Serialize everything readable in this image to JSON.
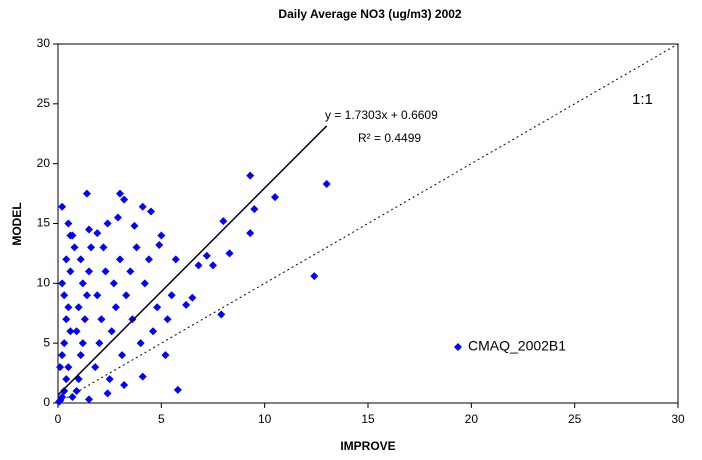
{
  "chart_data": {
    "type": "scatter",
    "title": "Daily Average NO3 (ug/m3) 2002",
    "x_label": "IMPROVE",
    "y_label": "MODEL",
    "xlim": [
      0,
      30
    ],
    "ylim": [
      0,
      30
    ],
    "xticks": [
      0,
      5,
      10,
      15,
      20,
      25,
      30
    ],
    "yticks": [
      0,
      5,
      10,
      15,
      20,
      25,
      30
    ],
    "grid": false,
    "series": [
      {
        "name": "CMAQ_2002B1",
        "color": "#0000ff",
        "x": [
          9.3,
          13,
          12.4,
          10.5,
          9.3,
          9.5,
          8,
          7.9,
          6.8,
          5.8,
          5.5,
          5.7,
          7.2,
          7.5,
          8.3,
          6.2,
          6.5,
          1.4,
          3.0,
          3.2,
          0.6,
          4.5,
          4.1,
          2.4,
          1.5,
          0.7,
          0.05,
          0.1,
          0.2,
          0.3,
          0.4,
          0.5,
          0.2,
          0.3,
          0.6,
          0.4,
          0.5,
          0.3,
          0.2,
          0.6,
          0.4,
          0.8,
          0.1,
          0.9,
          1,
          1.1,
          1.2,
          0.9,
          1.3,
          1,
          1.4,
          1.2,
          1.5,
          1.1,
          1.6,
          1.8,
          2,
          2.1,
          1.9,
          2.3,
          2.2,
          2.5,
          2.6,
          2.8,
          2.7,
          3,
          3.1,
          3.3,
          3.5,
          3.6,
          3.8,
          4,
          4.2,
          4.4,
          4.6,
          4.8,
          5,
          5.2,
          5.3,
          0.7,
          1.5,
          2.4,
          3.2,
          4.1,
          0.5,
          1.9,
          2.9,
          3.7,
          4.9,
          0.2
        ],
        "y": [
          19,
          18.3,
          10.6,
          17.2,
          14.2,
          16.2,
          15.2,
          7.4,
          11.5,
          1.1,
          9,
          12,
          12.3,
          11.5,
          12.5,
          8.2,
          8.8,
          17.5,
          17.5,
          17,
          14,
          16,
          16.4,
          15,
          14.5,
          14,
          0.1,
          0.2,
          0.5,
          1,
          2,
          3,
          4,
          5,
          6,
          7,
          8,
          9,
          10,
          11,
          12,
          13,
          3,
          1,
          2,
          4,
          5,
          6,
          7,
          8,
          9,
          10,
          11,
          12,
          13,
          3,
          5,
          7,
          9,
          11,
          13,
          2,
          6,
          8,
          10,
          12,
          4,
          9,
          11,
          7,
          13,
          5,
          10,
          12,
          6,
          8,
          14,
          4,
          7,
          0.5,
          0.3,
          0.8,
          1.5,
          2.2,
          15,
          14.2,
          15.5,
          14.8,
          13.2,
          16.4
        ]
      }
    ],
    "trendline": {
      "label": "y = 1.7303x + 0.6609",
      "r2_label": "R² = 0.4499",
      "slope": 1.7303,
      "intercept": 0.6609,
      "xmax": 13
    },
    "reference_line": {
      "label": "1:1"
    }
  }
}
